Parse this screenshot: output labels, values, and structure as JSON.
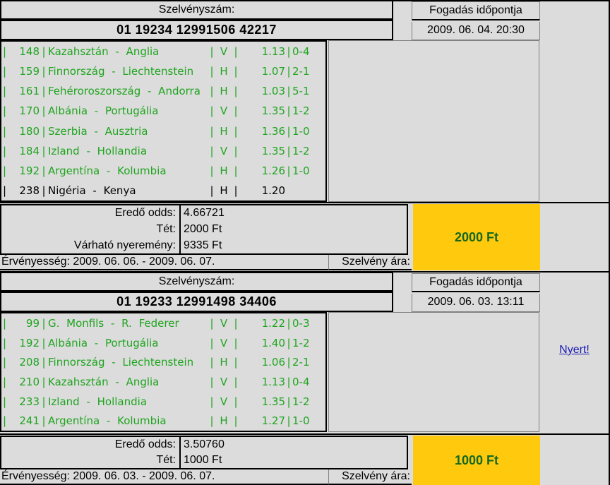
{
  "separator": "|",
  "colors": {
    "background": "#dcdcdc",
    "row_green": "#1fa51f",
    "row_black": "#000000",
    "stake_yellow": "#ffc90e",
    "stake_text_green": "#15691c",
    "link_blue": "#1a1ab4",
    "border_gray": "#808080"
  },
  "slips": [
    {
      "ticket_label": "Szelvényszám:",
      "bet_time_label": "Fogadás időpontja",
      "ticket_number": "01 19234 12991506 42217",
      "bet_time": "2009. 06. 04. 20:30",
      "matches": [
        {
          "num": "148",
          "name": "Kazahsztán - Anglia",
          "tip": "V",
          "odds": "1.13",
          "result": "0-4",
          "status": "won"
        },
        {
          "num": "159",
          "name": "Finnország - Liechtenstein",
          "tip": "H",
          "odds": "1.07",
          "result": "2-1",
          "status": "won"
        },
        {
          "num": "161",
          "name": "Fehéroroszország - Andorra",
          "tip": "H",
          "odds": "1.03",
          "result": "5-1",
          "status": "won"
        },
        {
          "num": "170",
          "name": "Albánia - Portugália",
          "tip": "V",
          "odds": "1.35",
          "result": "1-2",
          "status": "won"
        },
        {
          "num": "180",
          "name": "Szerbia - Ausztria",
          "tip": "H",
          "odds": "1.36",
          "result": "1-0",
          "status": "won"
        },
        {
          "num": "184",
          "name": "Izland - Hollandia",
          "tip": "V",
          "odds": "1.35",
          "result": "1-2",
          "status": "won"
        },
        {
          "num": "192",
          "name": "Argentína - Kolumbia",
          "tip": "H",
          "odds": "1.26",
          "result": "1-0",
          "status": "won"
        },
        {
          "num": "238",
          "name": "Nigéria - Kenya",
          "tip": "H",
          "odds": "1.20",
          "result": "",
          "status": "pending"
        }
      ],
      "summary": [
        {
          "label": "Eredő odds:",
          "value": "4.66721"
        },
        {
          "label": "Tét:",
          "value": "2000 Ft"
        },
        {
          "label": "Várható nyeremény:",
          "value": "9335 Ft"
        }
      ],
      "validity": "Érvényesség: 2009. 06. 06. - 2009. 06. 07.",
      "price_label": "Szelvény ára:",
      "price_value": "2000 Ft",
      "status_link": ""
    },
    {
      "ticket_label": "Szelvényszám:",
      "bet_time_label": "Fogadás időpontja",
      "ticket_number": "01 19233 12991498 34406",
      "bet_time": "2009. 06. 03. 13:11",
      "matches": [
        {
          "num": "99",
          "name": "G. Monfils - R. Federer",
          "tip": "V",
          "odds": "1.22",
          "result": "0-3",
          "status": "won"
        },
        {
          "num": "192",
          "name": "Albánia - Portugália",
          "tip": "V",
          "odds": "1.40",
          "result": "1-2",
          "status": "won"
        },
        {
          "num": "208",
          "name": "Finnország - Liechtenstein",
          "tip": "H",
          "odds": "1.06",
          "result": "2-1",
          "status": "won"
        },
        {
          "num": "210",
          "name": "Kazahsztán - Anglia",
          "tip": "V",
          "odds": "1.13",
          "result": "0-4",
          "status": "won"
        },
        {
          "num": "233",
          "name": "Izland - Hollandia",
          "tip": "V",
          "odds": "1.35",
          "result": "1-2",
          "status": "won"
        },
        {
          "num": "241",
          "name": "Argentína - Kolumbia",
          "tip": "H",
          "odds": "1.27",
          "result": "1-0",
          "status": "won"
        }
      ],
      "summary": [
        {
          "label": "Eredő odds:",
          "value": "3.50760"
        },
        {
          "label": "Tét:",
          "value": "1000 Ft"
        }
      ],
      "validity": "Érvényesség: 2009. 06. 03. - 2009. 06. 07.",
      "price_label": "Szelvény ára:",
      "price_value": "1000 Ft",
      "status_link": "Nyert!"
    }
  ]
}
